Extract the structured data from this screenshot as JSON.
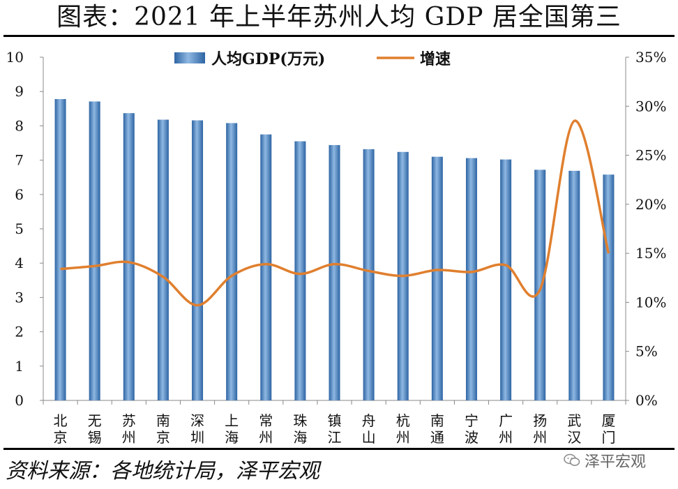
{
  "title": "图表：2021 年上半年苏州人均 GDP 居全国第三",
  "source": "资料来源：各地统计局，泽平宏观",
  "watermark": "泽平宏观",
  "colors": {
    "bar": "#3d78b8",
    "bar_light": "#8fb8e2",
    "line": "#e07f2e",
    "axis": "#888888"
  },
  "chart_data": {
    "type": "bar+line",
    "categories": [
      "北京",
      "无锡",
      "苏州",
      "南京",
      "深圳",
      "上海",
      "常州",
      "珠海",
      "镇江",
      "舟山",
      "杭州",
      "南通",
      "宁波",
      "广州",
      "扬州",
      "武汉",
      "厦门"
    ],
    "category_labels": [
      [
        "北",
        "京"
      ],
      [
        "无",
        "锡"
      ],
      [
        "苏",
        "州"
      ],
      [
        "南",
        "京"
      ],
      [
        "深",
        "圳"
      ],
      [
        "上",
        "海"
      ],
      [
        "常",
        "州"
      ],
      [
        "珠",
        "海"
      ],
      [
        "镇",
        "江"
      ],
      [
        "舟",
        "山"
      ],
      [
        "杭",
        "州"
      ],
      [
        "南",
        "通"
      ],
      [
        "宁",
        "波"
      ],
      [
        "广",
        "州"
      ],
      [
        "扬",
        "州"
      ],
      [
        "武",
        "汉"
      ],
      [
        "厦",
        "门"
      ]
    ],
    "series": [
      {
        "name": "人均GDP(万元)",
        "type": "bar",
        "axis": "left",
        "values": [
          8.78,
          8.71,
          8.37,
          8.18,
          8.16,
          8.08,
          7.75,
          7.55,
          7.44,
          7.32,
          7.24,
          7.1,
          7.06,
          7.02,
          6.72,
          6.69,
          6.58
        ]
      },
      {
        "name": "增速",
        "type": "line",
        "axis": "right",
        "values": [
          13.4,
          13.7,
          14.1,
          12.6,
          9.7,
          12.7,
          13.9,
          12.9,
          13.9,
          13.2,
          12.7,
          13.3,
          13.1,
          13.8,
          11.3,
          28.5,
          15.0
        ]
      }
    ],
    "y_left": {
      "min": 0,
      "max": 10,
      "ticks": [
        "0",
        "1",
        "2",
        "3",
        "4",
        "5",
        "6",
        "7",
        "8",
        "9",
        "10"
      ]
    },
    "y_right": {
      "min": 0,
      "max": 35,
      "ticks": [
        "0%",
        "5%",
        "10%",
        "15%",
        "20%",
        "25%",
        "30%",
        "35%"
      ]
    },
    "legend": [
      "人均GDP(万元)",
      "增速"
    ]
  }
}
